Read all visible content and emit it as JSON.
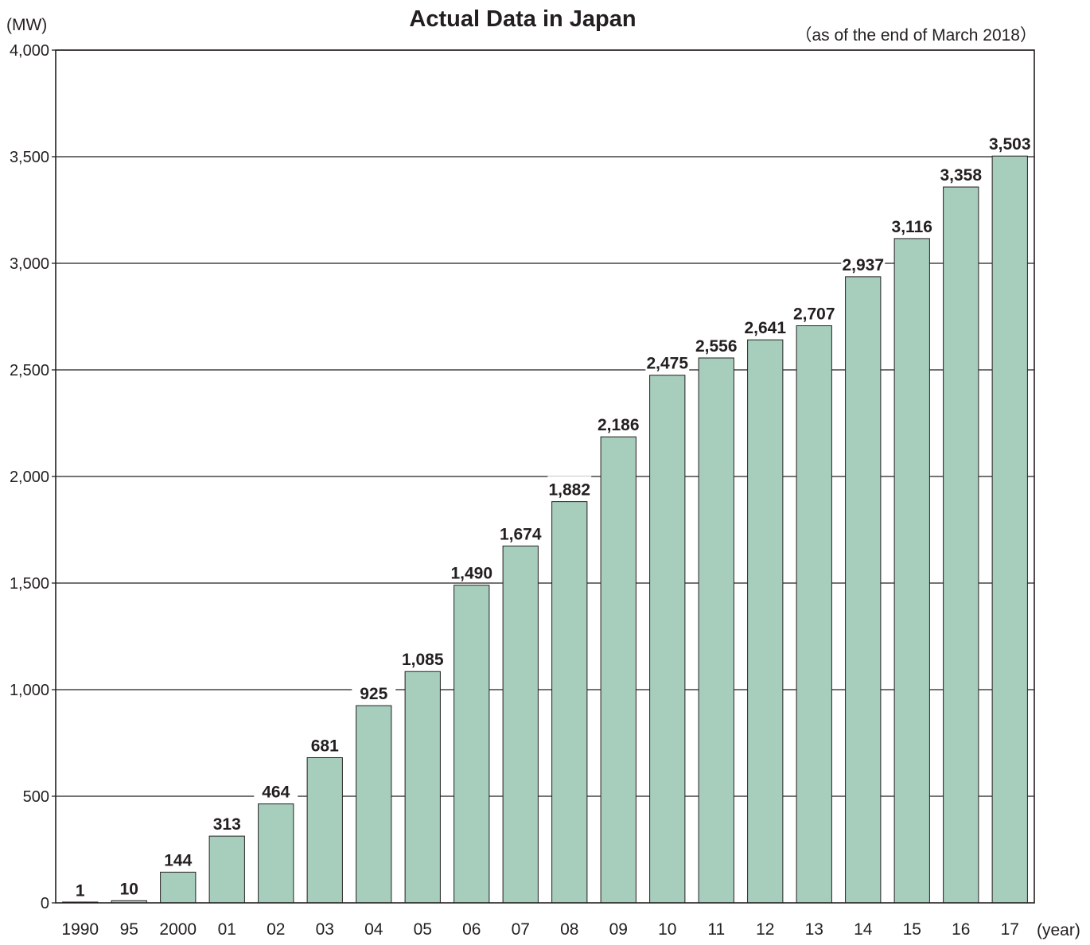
{
  "chart_data": {
    "type": "bar",
    "title": "Actual Data in Japan",
    "subtitle": "（as of the end of March 2018）",
    "ylabel": "(MW)",
    "xlabel": "(year)",
    "ylim": [
      0,
      4000
    ],
    "yticks": [
      0,
      500,
      1000,
      1500,
      2000,
      2500,
      3000,
      3500,
      4000
    ],
    "ytick_labels": [
      "0",
      "500",
      "1,000",
      "1,500",
      "2,000",
      "2,500",
      "3,000",
      "3,500",
      "4,000"
    ],
    "grid": true,
    "categories": [
      "1990",
      "95",
      "2000",
      "01",
      "02",
      "03",
      "04",
      "05",
      "06",
      "07",
      "08",
      "09",
      "10",
      "11",
      "12",
      "13",
      "14",
      "15",
      "16",
      "17"
    ],
    "values": [
      1,
      10,
      144,
      313,
      464,
      681,
      925,
      1085,
      1490,
      1674,
      1882,
      2186,
      2475,
      2556,
      2641,
      2707,
      2937,
      3116,
      3358,
      3503
    ],
    "value_labels": [
      "1",
      "10",
      "144",
      "313",
      "464",
      "681",
      "925",
      "1,085",
      "1,490",
      "1,674",
      "1,882",
      "2,186",
      "2,475",
      "2,556",
      "2,641",
      "2,707",
      "2,937",
      "3,116",
      "3,358",
      "3,503"
    ],
    "colors": {
      "bar": "#a7cebd",
      "bar_stroke": "#231f20",
      "grid": "#231f20",
      "text": "#231f20"
    }
  }
}
